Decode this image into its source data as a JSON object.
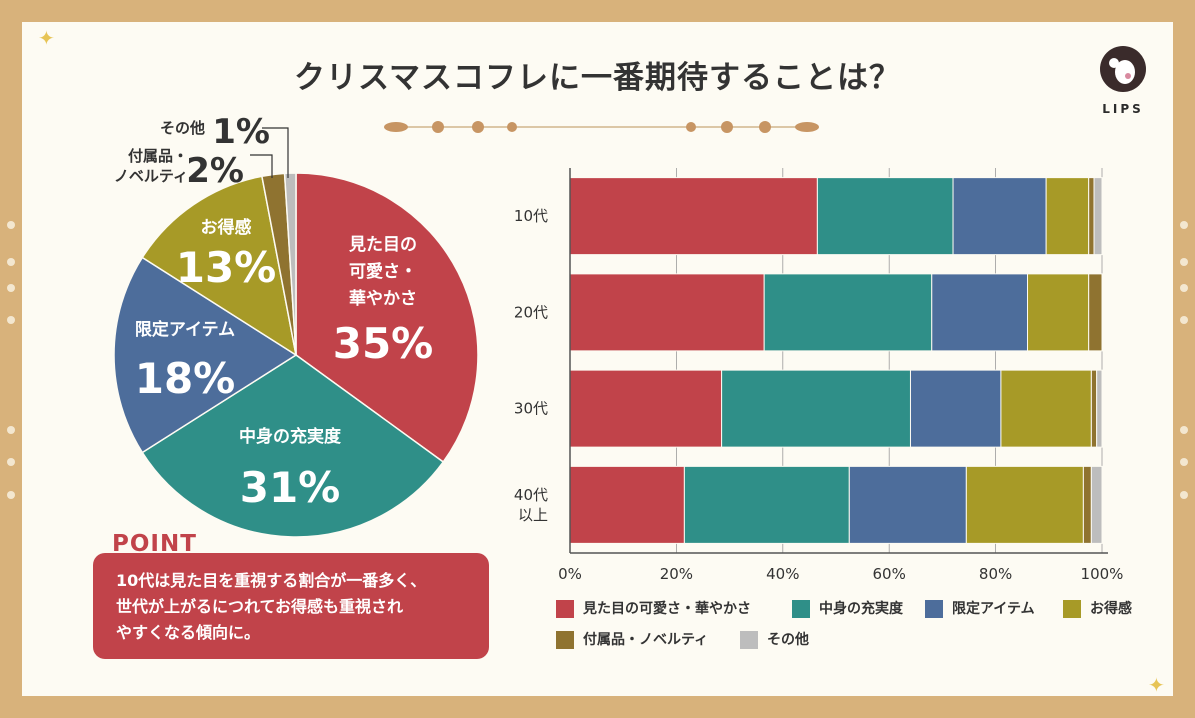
{
  "title": "クリスマスコフレに一番期待することは？",
  "brand": {
    "logo_text": "LIPS"
  },
  "colors": {
    "looks": "#c1434a",
    "content": "#2f8f88",
    "limited": "#4d6d9b",
    "value": "#a79a27",
    "extras": "#8f7330",
    "other": "#bdbdbd"
  },
  "chart_data": [
    {
      "type": "pie",
      "slices": [
        {
          "label": "見た目の可愛さ・華やかさ",
          "label_lines": [
            "見た目の",
            "可愛さ・",
            "華やかさ"
          ],
          "value": 35,
          "value_text": "35%"
        },
        {
          "label": "中身の充実度",
          "label_lines": [
            "中身の充実度"
          ],
          "value": 31,
          "value_text": "31%"
        },
        {
          "label": "限定アイテム",
          "label_lines": [
            "限定アイテム"
          ],
          "value": 18,
          "value_text": "18%"
        },
        {
          "label": "お得感",
          "label_lines": [
            "お得感"
          ],
          "value": 13,
          "value_text": "13%"
        },
        {
          "label": "付属品・ノベルティ",
          "label_lines": [
            "付属品・",
            "ノベルティ"
          ],
          "value": 2,
          "value_text": "2%"
        },
        {
          "label": "その他",
          "label_lines": [
            "その他"
          ],
          "value": 1,
          "value_text": "1%"
        }
      ]
    },
    {
      "type": "bar",
      "orientation": "horizontal",
      "stacked": true,
      "categories": [
        "10代",
        "20代",
        "30代",
        "40代 以上"
      ],
      "category_lines": [
        [
          "10代"
        ],
        [
          "20代"
        ],
        [
          "30代"
        ],
        [
          "40代",
          "以上"
        ]
      ],
      "series": [
        {
          "name": "見た目の可愛さ・華やかさ",
          "values": [
            46.5,
            36.5,
            28.5,
            21.5
          ]
        },
        {
          "name": "中身の充実度",
          "values": [
            25.5,
            31.5,
            35.5,
            31
          ]
        },
        {
          "name": "限定アイテム",
          "values": [
            17.5,
            18,
            17,
            22
          ]
        },
        {
          "name": "お得感",
          "values": [
            8,
            11.5,
            17,
            22
          ]
        },
        {
          "name": "付属品・ノベルティ",
          "values": [
            1,
            2.5,
            1,
            1.5
          ]
        },
        {
          "name": "その他",
          "values": [
            1.5,
            0,
            1,
            2
          ]
        }
      ],
      "xlim": [
        0,
        100
      ],
      "x_ticks": [
        "0%",
        "20%",
        "40%",
        "60%",
        "80%",
        "100%"
      ],
      "legend": [
        [
          "見た目の可愛さ・華やかさ",
          "中身の充実度",
          "限定アイテム",
          "お得感"
        ],
        [
          "付属品・ノベルティ",
          "その他"
        ]
      ]
    }
  ],
  "point": {
    "heading": "POINT",
    "lines": [
      "10代は見た目を重視する割合が一番多く、",
      "世代が上がるにつれてお得感も重視され",
      "やすくなる傾向に。"
    ]
  }
}
